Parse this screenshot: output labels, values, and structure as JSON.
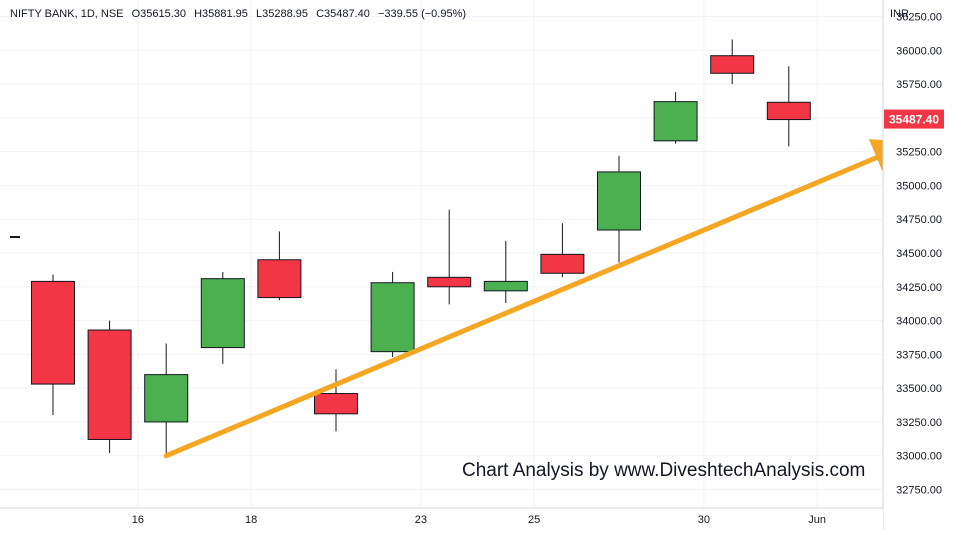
{
  "header": {
    "symbol": "NIFTY BANK, 1D, NSE",
    "open_label": "O",
    "open": "35615.30",
    "high_label": "H",
    "high": "35881.95",
    "low_label": "L",
    "low": "35288.95",
    "close_label": "C",
    "close": "35487.40",
    "change": "−339.55 (−0.95%)"
  },
  "currency": "INR",
  "watermark": "Chart Analysis by www.DiveshtechAnalysis.com",
  "chart_data": {
    "type": "candlestick",
    "ylim": [
      32650,
      36350
    ],
    "y_ticks": [
      "32750.00",
      "33000.00",
      "33250.00",
      "33500.00",
      "33750.00",
      "34000.00",
      "34250.00",
      "34500.00",
      "34750.00",
      "35000.00",
      "35250.00",
      "35500.00",
      "35750.00",
      "36000.00",
      "36250.00"
    ],
    "x_ticks": [
      {
        "label": "16",
        "after_candle": 2
      },
      {
        "label": "18",
        "after_candle": 4
      },
      {
        "label": "23",
        "after_candle": 7
      },
      {
        "label": "25",
        "after_candle": 9
      },
      {
        "label": "30",
        "after_candle": 12
      },
      {
        "label": "Jun",
        "after_candle": 14
      }
    ],
    "last_price_label": "35487.40",
    "colors": {
      "up": "#4caf50",
      "down": "#f23645",
      "trend": "#f5a623",
      "last_price": "#f23645"
    },
    "candles": [
      {
        "o": 34290,
        "h": 34340,
        "l": 33300,
        "c": 33530
      },
      {
        "o": 33930,
        "h": 34000,
        "l": 33020,
        "c": 33120
      },
      {
        "o": 33250,
        "h": 33830,
        "l": 33020,
        "c": 33600
      },
      {
        "o": 33800,
        "h": 34360,
        "l": 33680,
        "c": 34310
      },
      {
        "o": 34450,
        "h": 34660,
        "l": 34150,
        "c": 34170
      },
      {
        "o": 33460,
        "h": 33640,
        "l": 33180,
        "c": 33310
      },
      {
        "o": 33770,
        "h": 34360,
        "l": 33730,
        "c": 34280
      },
      {
        "o": 34320,
        "h": 34820,
        "l": 34120,
        "c": 34250
      },
      {
        "o": 34220,
        "h": 34590,
        "l": 34130,
        "c": 34290
      },
      {
        "o": 34490,
        "h": 34720,
        "l": 34320,
        "c": 34350
      },
      {
        "o": 34670,
        "h": 35220,
        "l": 34430,
        "c": 35100
      },
      {
        "o": 35330,
        "h": 35690,
        "l": 35310,
        "c": 35620
      },
      {
        "o": 35960,
        "h": 36080,
        "l": 35750,
        "c": 35830
      },
      {
        "o": 35615.3,
        "h": 35881.95,
        "l": 35288.95,
        "c": 35487.4
      }
    ],
    "trend_line": {
      "from": {
        "candle": 2,
        "price": 33000
      },
      "to": {
        "candle": 15.1,
        "price": 35300
      }
    }
  }
}
